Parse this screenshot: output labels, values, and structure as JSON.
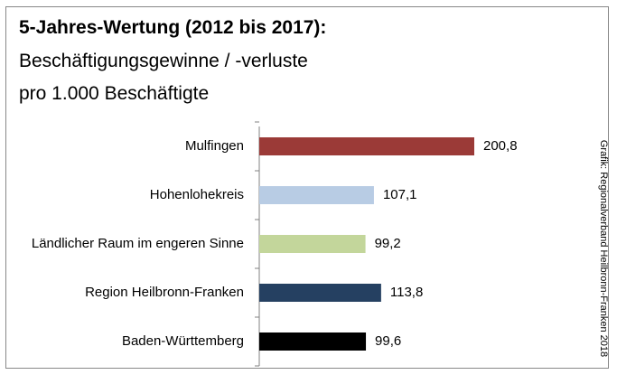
{
  "chart_data": {
    "type": "barh",
    "title": "5-Jahres-Wertung (2012  bis 2017):",
    "subtitle": [
      "Beschäftigungsgewinne / -verluste",
      "pro 1.000 Beschäftigte"
    ],
    "source": "Grafik: Regionalverband Heilbronn-Franken 2018",
    "categories": [
      "Mulfingen",
      "Hohenlohekreis",
      "Ländlicher Raum im engeren Sinne",
      "Region Heilbronn-Franken",
      "Baden-Württemberg"
    ],
    "values": [
      200.8,
      107.1,
      99.2,
      113.8,
      99.6
    ],
    "value_labels": [
      "200,8",
      "107,1",
      "99,2",
      "113,8",
      "99,6"
    ],
    "colors": [
      "#9b3a37",
      "#b8cce4",
      "#c3d69b",
      "#254061",
      "#000000"
    ]
  }
}
